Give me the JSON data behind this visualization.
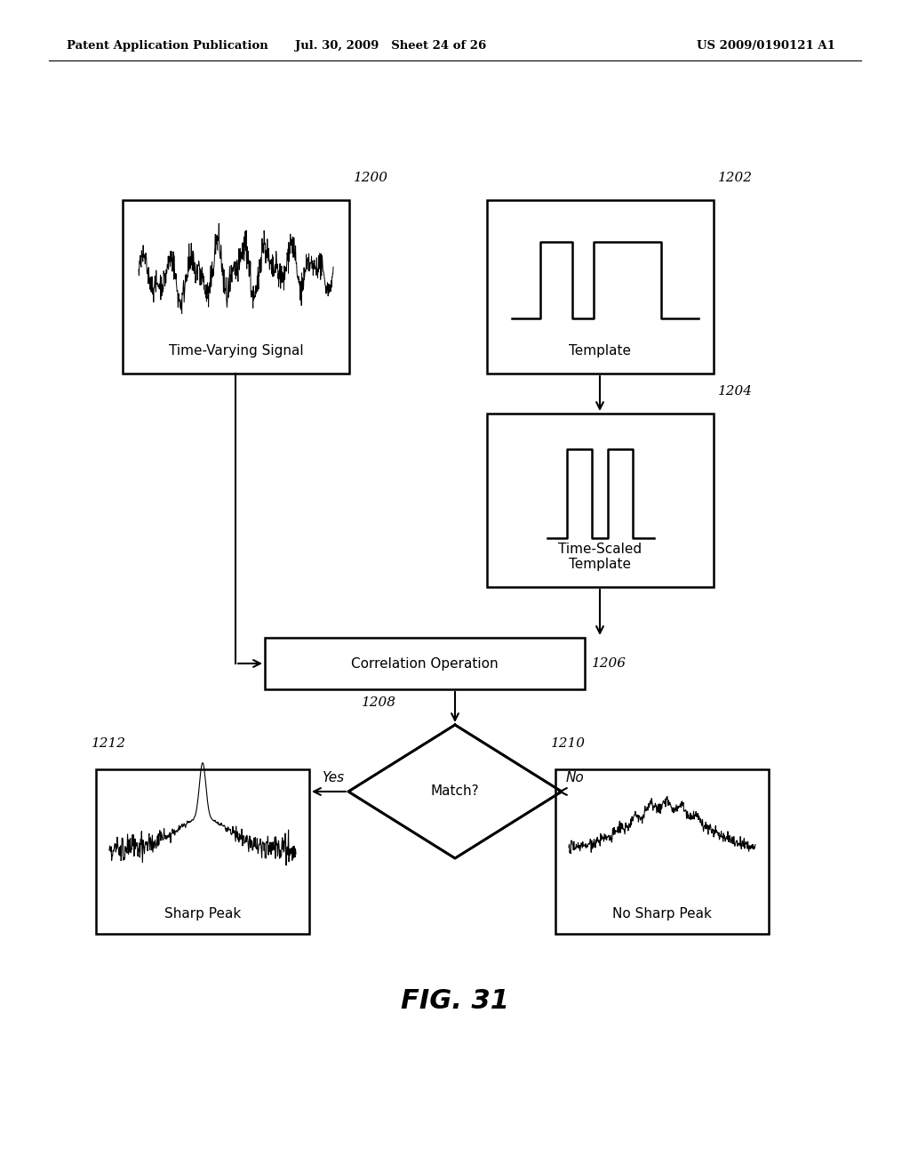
{
  "header_left": "Patent Application Publication",
  "header_mid": "Jul. 30, 2009   Sheet 24 of 26",
  "header_right": "US 2009/0190121 A1",
  "fig_label": "FIG. 31",
  "box_1200_label": "Time-Varying Signal",
  "box_1200_num": "1200",
  "box_1202_label": "Template",
  "box_1202_num": "1202",
  "box_1204_label": "Time-Scaled\nTemplate",
  "box_1204_num": "1204",
  "box_1206_label": "Correlation Operation",
  "box_1206_num": "1206",
  "diamond_1208_label": "Match?",
  "diamond_1208_num": "1208",
  "box_1210_label": "No Sharp Peak",
  "box_1210_num": "1210",
  "box_1212_label": "Sharp Peak",
  "box_1212_num": "1212",
  "yes_label": "Yes",
  "no_label": "No",
  "bg_color": "#ffffff",
  "line_color": "#000000",
  "text_color": "#000000"
}
